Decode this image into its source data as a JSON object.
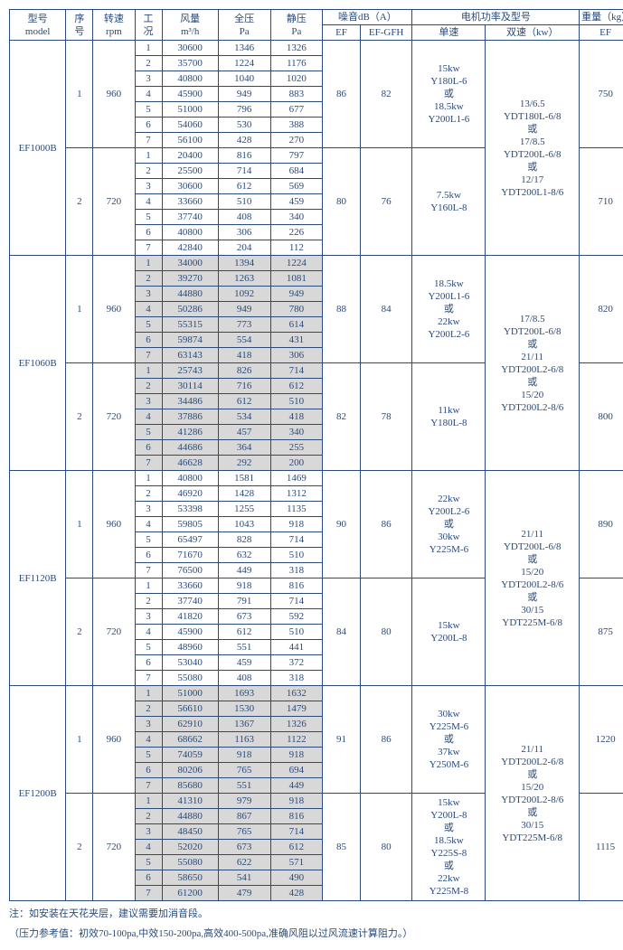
{
  "colors": {
    "border": "#2a4a7a",
    "text": "#2a4a7a",
    "shade": "#d8d8d8"
  },
  "headers": {
    "model": "型号\nmodel",
    "xh": "序\n号",
    "rpm": "转速\nrpm",
    "gk": "工\n况",
    "fl": "风量\nm³/h",
    "qy": "全压\nPa",
    "jy": "静压\nPa",
    "noise": "噪音dB（A）",
    "ef": "EF",
    "gfh": "EF-GFH",
    "motor": "电机功率及型号",
    "ds": "单速",
    "ss": "双速（kw）",
    "wt": "重量（kg）",
    "wt2": "EF"
  },
  "notes": [
    "注：如安装在天花夹层，建议需要加消音段。",
    "（压力参考值：初效70-100pa,中效150-200pa,高效400-500pa,准确风阻以过风流速计算阻力。）"
  ],
  "models": [
    {
      "name": "EF1000B",
      "shaded": false,
      "ss": "13/6.5\nYDT180L-6/8\n或\n17/8.5\nYDT200L-6/8\n或\n12/17\nYDT200L1-8/6",
      "seqs": [
        {
          "xh": "1",
          "rpm": "960",
          "ef": "86",
          "gfh": "82",
          "ds": "15kw\nY180L-6\n或\n18.5kw\nY200L1-6",
          "wt": "750",
          "rows": [
            [
              "30600",
              "1346",
              "1326"
            ],
            [
              "35700",
              "1224",
              "1176"
            ],
            [
              "40800",
              "1040",
              "1020"
            ],
            [
              "45900",
              "949",
              "883"
            ],
            [
              "51000",
              "796",
              "677"
            ],
            [
              "54060",
              "530",
              "388"
            ],
            [
              "56100",
              "428",
              "270"
            ]
          ]
        },
        {
          "xh": "2",
          "rpm": "720",
          "ef": "80",
          "gfh": "76",
          "ds": "7.5kw\nY160L-8",
          "wt": "710",
          "rows": [
            [
              "20400",
              "816",
              "797"
            ],
            [
              "25500",
              "714",
              "684"
            ],
            [
              "30600",
              "612",
              "569"
            ],
            [
              "33660",
              "510",
              "459"
            ],
            [
              "37740",
              "408",
              "340"
            ],
            [
              "40800",
              "306",
              "226"
            ],
            [
              "42840",
              "204",
              "112"
            ]
          ]
        }
      ]
    },
    {
      "name": "EF1060B",
      "shaded": true,
      "ss": "17/8.5\nYDT200L-6/8\n或\n21/11\nYDT200L2-6/8\n或\n15/20\nYDT200L2-8/6",
      "seqs": [
        {
          "xh": "1",
          "rpm": "960",
          "ef": "88",
          "gfh": "84",
          "ds": "18.5kw\nY200L1-6\n或\n22kw\nY200L2-6",
          "wt": "820",
          "rows": [
            [
              "34000",
              "1394",
              "1224"
            ],
            [
              "39270",
              "1263",
              "1081"
            ],
            [
              "44880",
              "1092",
              "949"
            ],
            [
              "50286",
              "949",
              "780"
            ],
            [
              "55315",
              "773",
              "614"
            ],
            [
              "59874",
              "554",
              "431"
            ],
            [
              "63143",
              "418",
              "306"
            ]
          ]
        },
        {
          "xh": "2",
          "rpm": "720",
          "ef": "82",
          "gfh": "78",
          "ds": "11kw\nY180L-8",
          "wt": "800",
          "rows": [
            [
              "25743",
              "826",
              "714"
            ],
            [
              "30114",
              "716",
              "612"
            ],
            [
              "34486",
              "612",
              "510"
            ],
            [
              "37886",
              "534",
              "418"
            ],
            [
              "41286",
              "457",
              "340"
            ],
            [
              "44686",
              "364",
              "255"
            ],
            [
              "46628",
              "292",
              "200"
            ]
          ]
        }
      ]
    },
    {
      "name": "EF1120B",
      "shaded": false,
      "ss": "21/11\nYDT200L-6/8\n或\n15/20\nYDT200L2-8/6\n或\n30/15\nYDT225M-6/8",
      "seqs": [
        {
          "xh": "1",
          "rpm": "960",
          "ef": "90",
          "gfh": "86",
          "ds": "22kw\nY200L2-6\n或\n30kw\nY225M-6",
          "wt": "890",
          "rows": [
            [
              "40800",
              "1581",
              "1469"
            ],
            [
              "46920",
              "1428",
              "1312"
            ],
            [
              "53398",
              "1255",
              "1135"
            ],
            [
              "59805",
              "1043",
              "918"
            ],
            [
              "65497",
              "828",
              "714"
            ],
            [
              "71670",
              "632",
              "510"
            ],
            [
              "76500",
              "449",
              "318"
            ]
          ]
        },
        {
          "xh": "2",
          "rpm": "720",
          "ef": "84",
          "gfh": "80",
          "ds": "15kw\nY200L-8",
          "wt": "875",
          "rows": [
            [
              "33660",
              "918",
              "816"
            ],
            [
              "37740",
              "791",
              "714"
            ],
            [
              "41820",
              "673",
              "592"
            ],
            [
              "45900",
              "612",
              "510"
            ],
            [
              "48960",
              "551",
              "441"
            ],
            [
              "53040",
              "459",
              "372"
            ],
            [
              "55080",
              "408",
              "318"
            ]
          ]
        }
      ]
    },
    {
      "name": "EF1200B",
      "shaded": true,
      "ss": "21/11\nYDT200L2-6/8\n或\n15/20\nYDT200L2-8/6\n或\n30/15\nYDT225M-6/8",
      "seqs": [
        {
          "xh": "1",
          "rpm": "960",
          "ef": "91",
          "gfh": "86",
          "ds": "30kw\nY225M-6\n或\n37kw\nY250M-6",
          "wt": "1220",
          "rows": [
            [
              "51000",
              "1693",
              "1632"
            ],
            [
              "56610",
              "1530",
              "1479"
            ],
            [
              "62910",
              "1367",
              "1326"
            ],
            [
              "68662",
              "1163",
              "1122"
            ],
            [
              "74059",
              "918",
              "918"
            ],
            [
              "80206",
              "765",
              "694"
            ],
            [
              "85680",
              "551",
              "449"
            ]
          ]
        },
        {
          "xh": "2",
          "rpm": "720",
          "ef": "85",
          "gfh": "80",
          "ds": "15kw\nY200L-8\n或\n18.5kw\nY225S-8\n或\n22kw\nY225M-8",
          "wt": "1115",
          "rows": [
            [
              "41310",
              "979",
              "918"
            ],
            [
              "44880",
              "867",
              "816"
            ],
            [
              "48450",
              "765",
              "714"
            ],
            [
              "52020",
              "673",
              "612"
            ],
            [
              "55080",
              "622",
              "571"
            ],
            [
              "58650",
              "541",
              "490"
            ],
            [
              "61200",
              "479",
              "428"
            ]
          ]
        }
      ]
    }
  ]
}
